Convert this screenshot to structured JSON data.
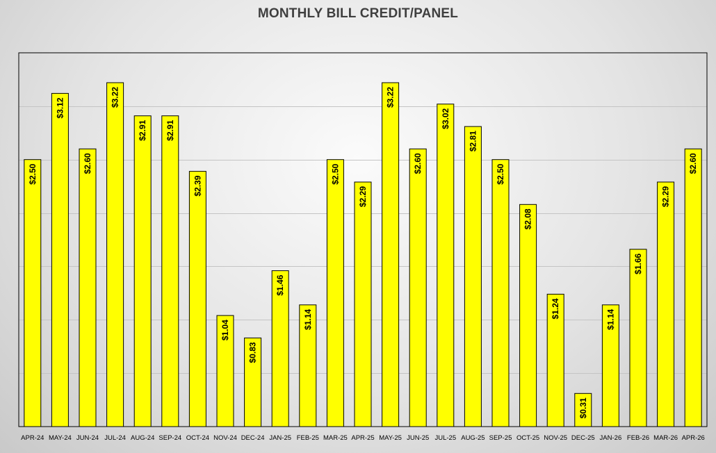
{
  "chart_data": {
    "type": "bar",
    "title": "MONTHLY BILL CREDIT/PANEL",
    "xlabel": "",
    "ylabel": "",
    "ylim": [
      0,
      3.5
    ],
    "grid": true,
    "legend": "none",
    "bar_color": "#ffff00",
    "categories": [
      "APR-24",
      "MAY-24",
      "JUN-24",
      "JUL-24",
      "AUG-24",
      "SEP-24",
      "OCT-24",
      "NOV-24",
      "DEC-24",
      "JAN-25",
      "FEB-25",
      "MAR-25",
      "APR-25",
      "MAY-25",
      "JUN-25",
      "JUL-25",
      "AUG-25",
      "SEP-25",
      "OCT-25",
      "NOV-25",
      "DEC-25",
      "JAN-26",
      "FEB-26",
      "MAR-26",
      "APR-26"
    ],
    "values": [
      2.5,
      3.12,
      2.6,
      3.22,
      2.91,
      2.91,
      2.39,
      1.04,
      0.83,
      1.46,
      1.14,
      2.5,
      2.29,
      3.22,
      2.6,
      3.02,
      2.81,
      2.5,
      2.08,
      1.24,
      0.31,
      1.14,
      1.66,
      2.29,
      2.6
    ],
    "data_labels": [
      "$2.50",
      "$3.12",
      "$2.60",
      "$3.22",
      "$2.91",
      "$2.91",
      "$2.39",
      "$1.04",
      "$0.83",
      "$1.46",
      "$1.14",
      "$2.50",
      "$2.29",
      "$3.22",
      "$2.60",
      "$3.02",
      "$2.81",
      "$2.50",
      "$2.08",
      "$1.24",
      "$0.31",
      "$1.14",
      "$1.66",
      "$2.29",
      "$2.60"
    ]
  }
}
